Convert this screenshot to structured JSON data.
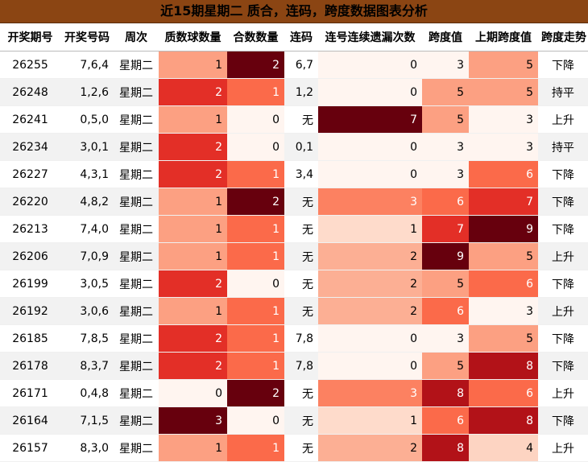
{
  "title": "近15期星期二 质合，连码，跨度数据图表分析",
  "chart_data": {
    "type": "table",
    "columns": [
      "开奖期号",
      "开奖号码",
      "周次",
      "质数球数量",
      "合数数量",
      "连码",
      "连号连续遗漏次数",
      "跨度值",
      "上期跨度值",
      "跨度走势"
    ],
    "rows": [
      [
        "26255",
        "7,6,4",
        "星期二",
        1,
        2,
        "6,7",
        0,
        3,
        5,
        "下降"
      ],
      [
        "26248",
        "1,2,6",
        "星期二",
        2,
        1,
        "1,2",
        0,
        5,
        5,
        "持平"
      ],
      [
        "26241",
        "0,5,0",
        "星期二",
        1,
        0,
        "无",
        7,
        5,
        3,
        "上升"
      ],
      [
        "26234",
        "3,0,1",
        "星期二",
        2,
        0,
        "0,1",
        0,
        3,
        3,
        "持平"
      ],
      [
        "26227",
        "4,3,1",
        "星期二",
        2,
        1,
        "3,4",
        0,
        3,
        6,
        "下降"
      ],
      [
        "26220",
        "4,8,2",
        "星期二",
        1,
        2,
        "无",
        3,
        6,
        7,
        "下降"
      ],
      [
        "26213",
        "7,4,0",
        "星期二",
        1,
        1,
        "无",
        1,
        7,
        9,
        "下降"
      ],
      [
        "26206",
        "7,0,9",
        "星期二",
        1,
        1,
        "无",
        2,
        9,
        5,
        "上升"
      ],
      [
        "26199",
        "3,0,5",
        "星期二",
        2,
        0,
        "无",
        2,
        5,
        6,
        "下降"
      ],
      [
        "26192",
        "3,0,6",
        "星期二",
        1,
        1,
        "无",
        2,
        6,
        3,
        "上升"
      ],
      [
        "26185",
        "7,8,5",
        "星期二",
        2,
        1,
        "7,8",
        0,
        3,
        5,
        "下降"
      ],
      [
        "26178",
        "8,3,7",
        "星期二",
        2,
        1,
        "7,8",
        0,
        5,
        8,
        "下降"
      ],
      [
        "26171",
        "0,4,8",
        "星期二",
        0,
        2,
        "无",
        3,
        8,
        6,
        "上升"
      ],
      [
        "26164",
        "7,1,5",
        "星期二",
        3,
        0,
        "无",
        1,
        6,
        8,
        "下降"
      ],
      [
        "26157",
        "8,3,0",
        "星期二",
        1,
        1,
        "无",
        2,
        8,
        4,
        "上升"
      ]
    ],
    "heat_columns": [
      3,
      4,
      6,
      7,
      8
    ]
  }
}
